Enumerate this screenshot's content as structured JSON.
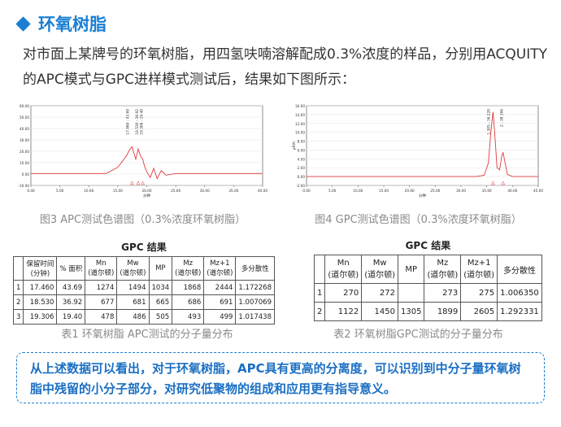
{
  "header": {
    "icon": "diamond-icon",
    "title": "环氧树脂",
    "accent": "#1a7fd4"
  },
  "intro": "对市面上某牌号的环氧树脂，用四氢呋喃溶解配成0.3%浓度的样品，分别用ACQUITY的APC模式与GPC进样模式测试后，结果如下图所示：",
  "chart_data": [
    {
      "type": "line",
      "line_color": "#e0393b",
      "xlim": [
        0,
        40
      ],
      "ylim": [
        -10,
        60
      ],
      "x_ticks": [
        "0.00",
        "5.00",
        "10.00",
        "15.00",
        "20.00",
        "25.00",
        "30.00",
        "35.00",
        "40.00"
      ],
      "y_ticks": [
        "-10.00",
        "0.00",
        "10.00",
        "20.00",
        "30.00",
        "40.00",
        "50.00",
        "60.00"
      ],
      "xlabel": "分钟",
      "peak_labels": [
        "17.460 - 43.69",
        "18.530 - 36.92",
        "19.306 - 19.40"
      ],
      "series": [
        {
          "x": [
            0,
            13,
            15,
            16.5,
            17,
            17.46,
            17.8,
            18.1,
            18.53,
            18.9,
            19.306,
            19.6,
            20,
            20.6,
            21.2,
            21.8,
            22.5,
            23.3,
            25,
            40
          ],
          "y": [
            0.5,
            0.5,
            6,
            16,
            21,
            24,
            18,
            13,
            22,
            16,
            13,
            7,
            2,
            -3,
            5,
            -4,
            3,
            -1,
            0.5,
            0.5
          ]
        }
      ]
    },
    {
      "type": "line",
      "line_color": "#e0393b",
      "xlim": [
        0,
        45
      ],
      "ylim": [
        -2,
        16
      ],
      "x_ticks": [
        "0.00",
        "5.00",
        "10.00",
        "15.00",
        "20.00",
        "25.00",
        "30.00",
        "35.00",
        "40.00",
        "45.00"
      ],
      "y_ticks": [
        "-2.00",
        "0.00",
        "2.00",
        "4.00",
        "6.00",
        "8.00",
        "10.00",
        "12.00",
        "14.00",
        "16.00"
      ],
      "xlabel": "分钟",
      "ylabel": "μRIU",
      "peak_labels": [
        "1.305 - 36.220",
        "2 - 38.166"
      ],
      "series": [
        {
          "x": [
            0,
            33,
            34.5,
            35.3,
            35.8,
            36.22,
            36.6,
            37,
            37.5,
            37.9,
            38.166,
            38.5,
            39,
            40,
            45
          ],
          "y": [
            0,
            0,
            0.3,
            3,
            10,
            14.6,
            9,
            2,
            1.5,
            4.5,
            5.5,
            3.5,
            0.5,
            0,
            0
          ]
        }
      ]
    }
  ],
  "captions": {
    "fig3": "图3 APC测试色谱图（0.3%浓度环氧树脂）",
    "fig4": "图4 GPC测试色谱图（0.3%浓度环氧树脂）",
    "tab1": "表1 环氧树脂 APC测试的分子量分布",
    "tab2": "表2 环氧树脂GPC测试的分子量分布"
  },
  "table1": {
    "title": "GPC 结果",
    "headers": [
      "",
      "保留时间\n(分钟)",
      "% 面积",
      "Mn\n(道尔顿)",
      "Mw\n(道尔顿)",
      "MP",
      "Mz\n(道尔顿)",
      "Mz+1\n(道尔顿)",
      "多分散性"
    ],
    "rows": [
      [
        "1",
        "17.460",
        "43.69",
        "1274",
        "1494",
        "1034",
        "1868",
        "2444",
        "1.172268"
      ],
      [
        "2",
        "18.530",
        "36.92",
        "677",
        "681",
        "665",
        "686",
        "691",
        "1.007069"
      ],
      [
        "3",
        "19.306",
        "19.40",
        "478",
        "486",
        "505",
        "493",
        "499",
        "1.017438"
      ]
    ]
  },
  "table2": {
    "title": "GPC 结果",
    "headers": [
      "",
      "Mn\n(道尔顿)",
      "Mw\n(道尔顿)",
      "MP",
      "Mz\n(道尔顿)",
      "Mz+1\n(道尔顿)",
      "多分散性"
    ],
    "rows": [
      [
        "1",
        "270",
        "272",
        "",
        "273",
        "275",
        "1.006350"
      ],
      [
        "2",
        "1122",
        "1450",
        "1305",
        "1899",
        "2605",
        "1.292331"
      ]
    ]
  },
  "conclusion": "从上述数据可以看出，对于环氧树脂，APC具有更高的分离度，可以识别到中分子量环氧树脂中残留的小分子部分，对研究低聚物的组成和应用更有指导意义。"
}
